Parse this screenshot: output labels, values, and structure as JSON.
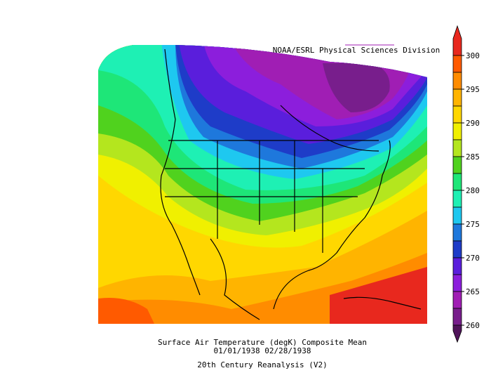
{
  "map": {
    "credit": "NOAA/ESRL Physical Sciences Division",
    "title": "Surface Air Temperature (degK) Composite Mean",
    "dates": "01/01/1938 02/28/1938",
    "source": "20th Century Reanalysis (V2)",
    "colorbar": {
      "ticks": [
        300,
        295,
        290,
        285,
        280,
        275,
        270,
        265,
        260
      ],
      "over_color": "#e8281e",
      "under_color": "#50145a",
      "colors": [
        "#ff5a00",
        "#ff8c00",
        "#ffb400",
        "#ffd700",
        "#f0f000",
        "#b4e61e",
        "#50d21e",
        "#1ee678",
        "#1ef0b4",
        "#1ec8f0",
        "#1e78dc",
        "#1e3cc8",
        "#5a1edc",
        "#8c1edc",
        "#a01eb4",
        "#781e8c"
      ]
    }
  }
}
